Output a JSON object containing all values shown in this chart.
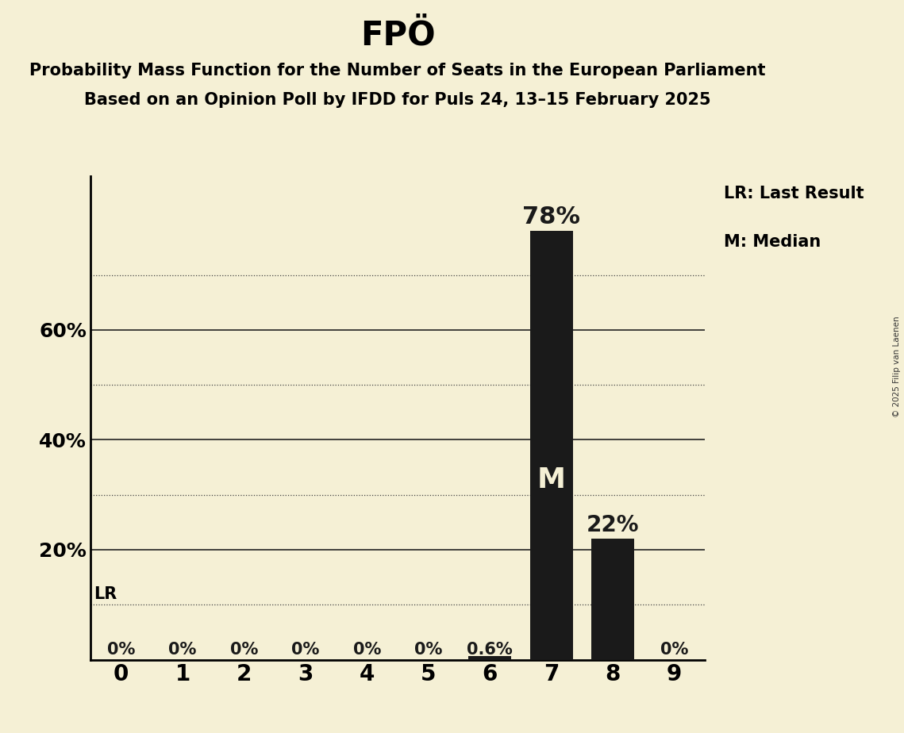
{
  "title": "FPÖ",
  "subtitle_line1": "Probability Mass Function for the Number of Seats in the European Parliament",
  "subtitle_line2": "Based on an Opinion Poll by IFDD for Puls 24, 13–15 February 2025",
  "copyright": "© 2025 Filip van Laenen",
  "categories": [
    0,
    1,
    2,
    3,
    4,
    5,
    6,
    7,
    8,
    9
  ],
  "values": [
    0.0,
    0.0,
    0.0,
    0.0,
    0.0,
    0.0,
    0.006,
    0.78,
    0.22,
    0.0
  ],
  "bar_color": "#1a1a1a",
  "background_color": "#f5f0d5",
  "bar_labels": [
    "0%",
    "0%",
    "0%",
    "0%",
    "0%",
    "0%",
    "0.6%",
    "78%",
    "22%",
    "0%"
  ],
  "median_bar_index": 7,
  "median_label": "M",
  "lr_value": 0.1,
  "lr_label": "LR",
  "solid_gridlines": [
    0.2,
    0.4,
    0.6
  ],
  "dotted_gridlines": [
    0.1,
    0.3,
    0.5,
    0.7
  ],
  "solid_ytick_labels": [
    "20%",
    "40%",
    "60%"
  ],
  "ylim": [
    0,
    0.88
  ],
  "legend_lr": "LR: Last Result",
  "legend_m": "M: Median",
  "title_fontsize": 30,
  "subtitle_fontsize": 15,
  "bar_label_fontsize": 15,
  "ytick_fontsize": 18,
  "xtick_fontsize": 20,
  "pct_label_78_fontsize": 22,
  "pct_label_22_fontsize": 20,
  "median_fontsize": 26,
  "legend_fontsize": 15
}
